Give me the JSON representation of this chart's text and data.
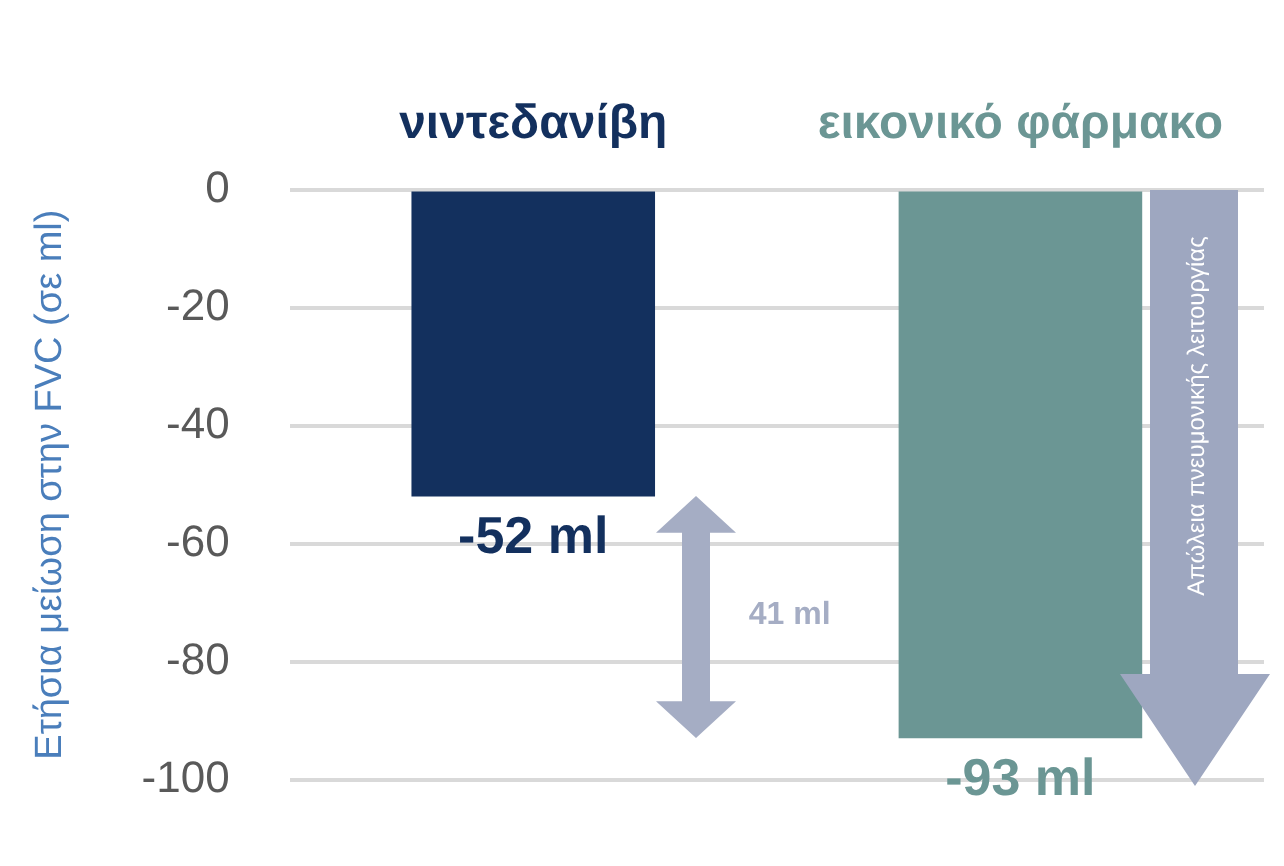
{
  "chart_data": {
    "type": "bar",
    "ylabel": "Ετήσια μείωση στην FVC (σε ml)",
    "categories": [
      "νιντεδανίβη",
      "εικονικό φάρμακο"
    ],
    "values": [
      -52,
      -93
    ],
    "colors": [
      "#13305e",
      "#6b9694"
    ],
    "value_labels": [
      "-52 ml",
      "-93 ml"
    ],
    "ylim": [
      -100,
      0
    ],
    "yticks": [
      0,
      -20,
      -40,
      -60,
      -80,
      -100
    ],
    "grid": "y",
    "legend": false,
    "annotations": [
      "41 ml",
      "Απώλεια πνευμονικής λειτουργίας"
    ]
  }
}
